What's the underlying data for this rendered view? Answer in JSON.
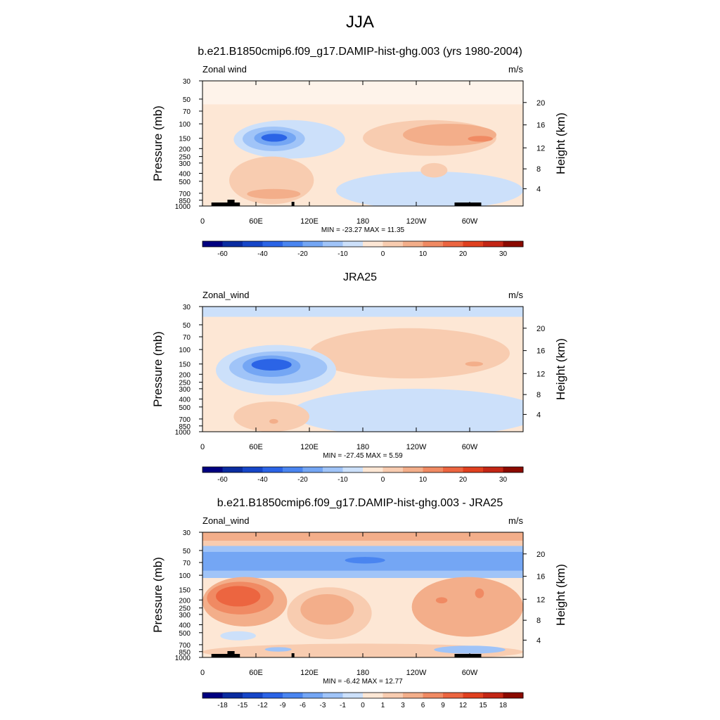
{
  "title": "JJA",
  "pressure_ticks": [
    "30",
    "50",
    "70",
    "100",
    "150",
    "200",
    "250",
    "300",
    "400",
    "500",
    "700",
    "850",
    "1000"
  ],
  "height_ticks": [
    "20",
    "16",
    "12",
    "8",
    "4"
  ],
  "lon_ticks": [
    "0",
    "60E",
    "120E",
    "180",
    "120W",
    "60W"
  ],
  "panels": [
    {
      "title": "b.e21.B1850cmip6.f09_g17.DAMIP-hist-ghg.003 (yrs 1980-2004)",
      "var_label": "Zonal wind",
      "units": "m/s",
      "ylabel": "Pressure (mb)",
      "ylabel_right": "Height (km)",
      "stats": "MIN = -23.27  MAX =  11.35",
      "colorbar_labels": [
        "-60",
        "-40",
        "-20",
        "-10",
        "0",
        "10",
        "20",
        "30"
      ]
    },
    {
      "title": "JRA25",
      "var_label": "Zonal_wind",
      "units": "m/s",
      "ylabel": "Pressure (mb)",
      "ylabel_right": "Height (km)",
      "stats": "MIN = -27.45  MAX =   5.59",
      "colorbar_labels": [
        "-60",
        "-40",
        "-20",
        "-10",
        "0",
        "10",
        "20",
        "30"
      ]
    },
    {
      "title": "b.e21.B1850cmip6.f09_g17.DAMIP-hist-ghg.003 - JRA25",
      "var_label": "Zonal_wind",
      "units": "m/s",
      "ylabel": "Pressure (mb)",
      "ylabel_right": "Height (km)",
      "stats": "MIN =  -6.42  MAX =  12.77",
      "colorbar_labels": [
        "-18",
        "-15",
        "-12",
        "-9",
        "-6",
        "-3",
        "-1",
        "0",
        "1",
        "3",
        "6",
        "9",
        "12",
        "15",
        "18"
      ]
    }
  ],
  "colors": {
    "scale": [
      "#000080",
      "#0a2ca0",
      "#1646c8",
      "#2b64e6",
      "#4a85f0",
      "#74a6f4",
      "#a0c4f8",
      "#cce0fa",
      "#fde7d5",
      "#f8ccb0",
      "#f3ae8a",
      "#f08a63",
      "#ec6540",
      "#e0401f",
      "#c32615",
      "#8b0a00"
    ],
    "land": "#000000"
  },
  "chart_data": [
    {
      "type": "heatmap",
      "title": "b.e21.B1850cmip6.f09_g17.DAMIP-hist-ghg.003 (yrs 1980-2004)",
      "x_ticks": [
        "0",
        "60E",
        "120E",
        "180",
        "120W",
        "60W"
      ],
      "xlim": [
        0,
        360
      ],
      "ylabel": "Pressure (mb)",
      "ylim": [
        1000,
        30
      ],
      "y_scale": "log",
      "min": -23.27,
      "max": 11.35,
      "levels": [
        -60,
        -40,
        -20,
        -10,
        0,
        10,
        20,
        30
      ],
      "regions": [
        {
          "x": [
            0,
            360
          ],
          "y": [
            30,
            1000
          ],
          "level": "0 to 5"
        },
        {
          "x": [
            0,
            360
          ],
          "y": [
            30,
            60
          ],
          "level": "0 to 5"
        },
        {
          "x": [
            35,
            165
          ],
          "y": [
            90,
            260
          ],
          "level": "-5 to 0"
        },
        {
          "x": [
            45,
            115
          ],
          "y": [
            110,
            210
          ],
          "level": "-10 to -5"
        },
        {
          "x": [
            65,
            95
          ],
          "y": [
            130,
            170
          ],
          "level": "-20 to -10"
        },
        {
          "x": [
            180,
            330
          ],
          "y": [
            90,
            240
          ],
          "level": "5 to 10"
        },
        {
          "x": [
            230,
            325
          ],
          "y": [
            100,
            180
          ],
          "level": "5 to 10"
        },
        {
          "x": [
            300,
            325
          ],
          "y": [
            140,
            165
          ],
          "level": "10 to 15"
        },
        {
          "x": [
            150,
            360
          ],
          "y": [
            350,
            1000
          ],
          "level": "-5 to 0"
        }
      ]
    },
    {
      "type": "heatmap",
      "title": "JRA25",
      "x_ticks": [
        "0",
        "60E",
        "120E",
        "180",
        "120W",
        "60W"
      ],
      "xlim": [
        0,
        360
      ],
      "ylabel": "Pressure (mb)",
      "ylim": [
        1000,
        30
      ],
      "y_scale": "log",
      "min": -27.45,
      "max": 5.59,
      "levels": [
        -60,
        -40,
        -20,
        -10,
        0,
        10,
        20,
        30
      ],
      "regions": [
        {
          "x": [
            0,
            360
          ],
          "y": [
            30,
            40
          ],
          "level": "-5 to 0"
        },
        {
          "x": [
            120,
            345
          ],
          "y": [
            55,
            220
          ],
          "level": "0 to 5"
        },
        {
          "x": [
            15,
            150
          ],
          "y": [
            90,
            350
          ],
          "level": "-5 to 0"
        },
        {
          "x": [
            35,
            140
          ],
          "y": [
            110,
            250
          ],
          "level": "-10 to -5"
        },
        {
          "x": [
            55,
            100
          ],
          "y": [
            130,
            180
          ],
          "level": "-20 to -10"
        },
        {
          "x": [
            100,
            360
          ],
          "y": [
            300,
            1000
          ],
          "level": "-5 to 0"
        }
      ]
    },
    {
      "type": "heatmap",
      "title": "b.e21.B1850cmip6.f09_g17.DAMIP-hist-ghg.003 - JRA25",
      "x_ticks": [
        "0",
        "60E",
        "120E",
        "180",
        "120W",
        "60W"
      ],
      "xlim": [
        0,
        360
      ],
      "ylabel": "Pressure (mb)",
      "ylim": [
        1000,
        30
      ],
      "y_scale": "log",
      "min": -6.42,
      "max": 12.77,
      "levels": [
        -18,
        -15,
        -12,
        -9,
        -6,
        -3,
        -1,
        0,
        1,
        3,
        6,
        9,
        12,
        15,
        18
      ],
      "regions": [
        {
          "x": [
            0,
            360
          ],
          "y": [
            30,
            38
          ],
          "level": "3 to 6"
        },
        {
          "x": [
            0,
            360
          ],
          "y": [
            45,
            105
          ],
          "level": "-3 to -1"
        },
        {
          "x": [
            0,
            360
          ],
          "y": [
            55,
            80
          ],
          "level": "-6 to -3"
        },
        {
          "x": [
            0,
            90
          ],
          "y": [
            110,
            400
          ],
          "level": "3 to 6"
        },
        {
          "x": [
            10,
            70
          ],
          "y": [
            130,
            250
          ],
          "level": "9 to 12"
        },
        {
          "x": [
            100,
            190
          ],
          "y": [
            150,
            550
          ],
          "level": "3 to 6"
        },
        {
          "x": [
            240,
            360
          ],
          "y": [
            110,
            520
          ],
          "level": "3 to 6"
        }
      ]
    }
  ]
}
